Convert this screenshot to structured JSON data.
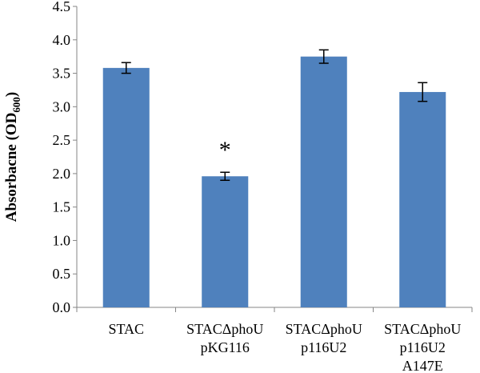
{
  "chart_data": {
    "type": "bar",
    "title": "",
    "xlabel": "",
    "ylabel": "Absorbacne (OD",
    "ylabel_subscript": "600",
    "ylabel_suffix": ")",
    "ylim": [
      0,
      4.5
    ],
    "yticks": [
      "0.0",
      "0.5",
      "1.0",
      "1.5",
      "2.0",
      "2.5",
      "3.0",
      "3.5",
      "4.0",
      "4.5"
    ],
    "grid": false,
    "bar_color": "#4f81bd",
    "categories": [
      [
        "STAC"
      ],
      [
        "STACΔphoU",
        "pKG116"
      ],
      [
        "STACΔphoU",
        "p116U2"
      ],
      [
        "STACΔphoU",
        "p116U2",
        "A147E"
      ]
    ],
    "values": [
      3.58,
      1.96,
      3.75,
      3.22
    ],
    "errors": [
      0.08,
      0.06,
      0.1,
      0.14
    ],
    "annotations": [
      "",
      "*",
      "",
      ""
    ]
  }
}
